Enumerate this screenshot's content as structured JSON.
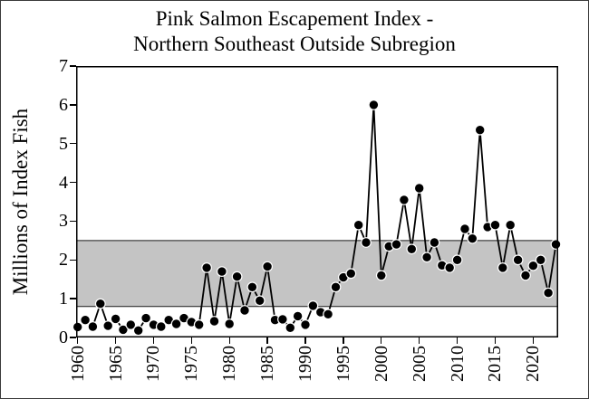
{
  "figure": {
    "title_line1": "Pink Salmon Escapement Index -",
    "title_line2": "Northern Southeast Outside Subregion",
    "y_axis_label": "Millions of Index Fish"
  },
  "chart_data": {
    "type": "line",
    "title": "Pink Salmon Escapement Index - Northern Southeast Outside Subregion",
    "xlabel": "",
    "ylabel": "Millions of Index Fish",
    "grid": false,
    "legend": null,
    "marker_style": "filled-black-circle",
    "line_color": "#000000",
    "xlim": [
      1959.8,
      2023.3
    ],
    "ylim": [
      0,
      7
    ],
    "x_tick_years": [
      1960,
      1965,
      1970,
      1975,
      1980,
      1985,
      1990,
      1995,
      2000,
      2005,
      2010,
      2015,
      2020
    ],
    "x_tick_rotation_deg": 90,
    "y_ticks": [
      0,
      1,
      2,
      3,
      4,
      5,
      6,
      7
    ],
    "shaded_band": {
      "y_from": 0.8,
      "y_to": 2.5,
      "color": "#c4c4c4"
    },
    "series": [
      {
        "name": "Pink salmon escapement index",
        "x": [
          1960,
          1961,
          1962,
          1963,
          1964,
          1965,
          1966,
          1967,
          1968,
          1969,
          1970,
          1971,
          1972,
          1973,
          1974,
          1975,
          1976,
          1977,
          1978,
          1979,
          1980,
          1981,
          1982,
          1983,
          1984,
          1985,
          1986,
          1987,
          1988,
          1989,
          1990,
          1991,
          1992,
          1993,
          1994,
          1995,
          1996,
          1997,
          1998,
          1999,
          2000,
          2001,
          2002,
          2003,
          2004,
          2005,
          2006,
          2007,
          2008,
          2009,
          2010,
          2011,
          2012,
          2013,
          2014,
          2015,
          2016,
          2017,
          2018,
          2019,
          2020,
          2021,
          2022,
          2023
        ],
        "y": [
          0.27,
          0.45,
          0.28,
          0.87,
          0.3,
          0.48,
          0.2,
          0.33,
          0.18,
          0.5,
          0.33,
          0.28,
          0.45,
          0.35,
          0.5,
          0.4,
          0.33,
          1.8,
          0.42,
          1.7,
          0.35,
          1.57,
          0.7,
          1.3,
          0.95,
          1.83,
          0.45,
          0.47,
          0.25,
          0.55,
          0.33,
          0.82,
          0.65,
          0.6,
          1.3,
          1.55,
          1.65,
          2.9,
          2.45,
          6.0,
          1.6,
          2.35,
          2.4,
          3.55,
          2.28,
          3.85,
          2.07,
          2.45,
          1.86,
          1.8,
          2.0,
          2.8,
          2.55,
          5.35,
          2.85,
          2.9,
          1.8,
          2.9,
          2.0,
          1.6,
          1.85,
          2.0,
          1.15,
          2.4
        ]
      }
    ]
  }
}
